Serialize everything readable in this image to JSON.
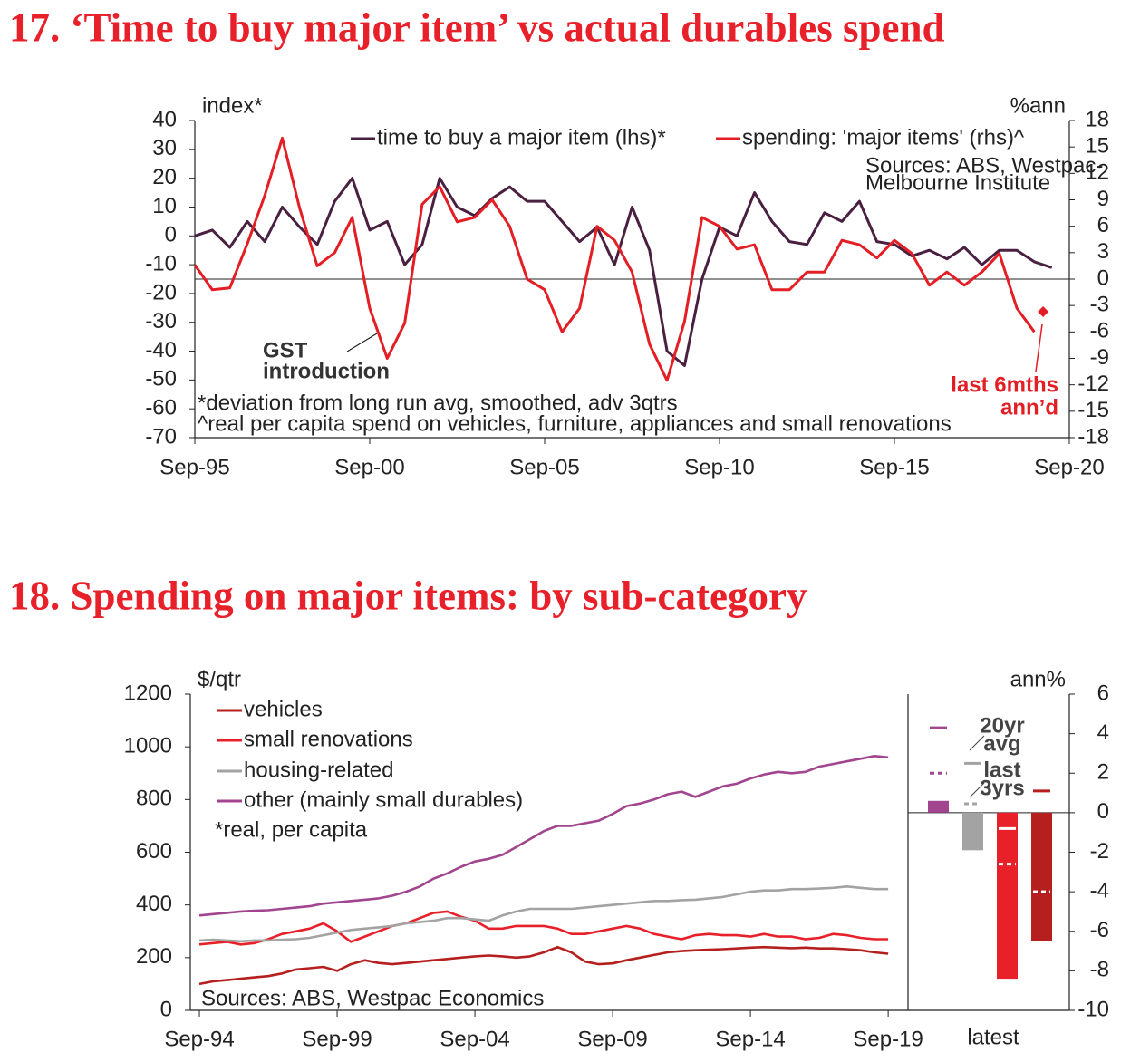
{
  "chart_data": [
    {
      "type": "line",
      "title": "17. ‘Time to buy major item’ vs actual durables spend",
      "ylabel": "index*",
      "y2label": "%ann",
      "xlim": [
        1995.75,
        2020.75
      ],
      "xticks": [
        {
          "value": 1995.75,
          "label": "Sep-95"
        },
        {
          "value": 2000.75,
          "label": "Sep-00"
        },
        {
          "value": 2005.75,
          "label": "Sep-05"
        },
        {
          "value": 2010.75,
          "label": "Sep-10"
        },
        {
          "value": 2015.75,
          "label": "Sep-15"
        },
        {
          "value": 2020.75,
          "label": "Sep-20"
        }
      ],
      "ylim": [
        -70,
        40
      ],
      "yticks": [
        40,
        30,
        20,
        10,
        0,
        -10,
        -20,
        -30,
        -40,
        -50,
        -60,
        -70
      ],
      "y2lim": [
        -18,
        18
      ],
      "y2ticks": [
        18,
        15,
        12,
        9,
        6,
        3,
        0,
        -3,
        -6,
        -9,
        -12,
        -15,
        -18
      ],
      "zero_line": "y2",
      "legend": "top",
      "x": [
        1995.75,
        1996.25,
        1996.75,
        1997.25,
        1997.75,
        1998.25,
        1998.75,
        1999.25,
        1999.75,
        2000.25,
        2000.75,
        2001.25,
        2001.75,
        2002.25,
        2002.75,
        2003.25,
        2003.75,
        2004.25,
        2004.75,
        2005.25,
        2005.75,
        2006.25,
        2006.75,
        2007.25,
        2007.75,
        2008.25,
        2008.75,
        2009.25,
        2009.75,
        2010.25,
        2010.75,
        2011.25,
        2011.75,
        2012.25,
        2012.75,
        2013.25,
        2013.75,
        2014.25,
        2014.75,
        2015.25,
        2015.75,
        2016.25,
        2016.75,
        2017.25,
        2017.75,
        2018.25,
        2018.75,
        2019.25,
        2019.75,
        2020.25
      ],
      "series": [
        {
          "name": "time to buy a major item (lhs)*",
          "color": "#4a2040",
          "axis": "y",
          "values": [
            0,
            2,
            -4,
            5,
            -2,
            10,
            3,
            -3,
            12,
            20,
            2,
            5,
            -10,
            -3,
            20,
            10,
            7,
            13,
            17,
            12,
            12,
            5,
            -2,
            3,
            -10,
            10,
            -5,
            -40,
            -45,
            -15,
            3,
            0,
            15,
            5,
            -2,
            -3,
            8,
            5,
            12,
            -2,
            -3,
            -7,
            -5,
            -8,
            -4,
            -10,
            -5,
            -5,
            -9,
            -11
          ]
        },
        {
          "name": "spending: 'major items' (rhs)^",
          "color": "#e31e24",
          "axis": "y2",
          "values": [
            1.6,
            -1.2,
            -1,
            4,
            9.5,
            16,
            8,
            1.5,
            3,
            7,
            -3.3,
            -9,
            -5,
            8.5,
            10.5,
            6.5,
            7,
            9,
            6,
            0,
            -1.2,
            -6,
            -3.3,
            6,
            4.4,
            0.8,
            -7.4,
            -11.5,
            -4.8,
            7,
            6,
            3.4,
            3.9,
            -1.2,
            -1.2,
            0.8,
            0.8,
            4.4,
            3.9,
            2.4,
            4.4,
            2.9,
            -0.7,
            0.8,
            -0.7,
            0.8,
            2.9,
            -3.3,
            -6,
            null
          ]
        }
      ],
      "point": {
        "x": 2020.0,
        "value": -3.7,
        "axis": "y2",
        "color": "#e31e24",
        "label": [
          "last 6mths",
          "ann’d"
        ]
      },
      "sources": [
        "Sources: ABS, Westpac-",
        "Melbourne Institute"
      ],
      "gst_note": [
        "GST",
        "introduction"
      ],
      "notes": [
        "*deviation from long run avg, smoothed, adv 3qtrs",
        "^real per capita spend on vehicles, furniture, appliances and small renovations"
      ]
    },
    {
      "type": "line",
      "title": "18. Spending on major items: by sub-category",
      "ylabel": "$/qtr",
      "y2label": "ann%",
      "xlim": [
        1994.42,
        2020.47
      ],
      "xticks": [
        {
          "value": 1994.75,
          "label": "Sep-94"
        },
        {
          "value": 1999.75,
          "label": "Sep-99"
        },
        {
          "value": 2004.75,
          "label": "Sep-04"
        },
        {
          "value": 2009.75,
          "label": "Sep-09"
        },
        {
          "value": 2014.75,
          "label": "Sep-14"
        },
        {
          "value": 2019.75,
          "label": "Sep-19"
        }
      ],
      "ylim": [
        0,
        1200
      ],
      "yticks": [
        1200,
        1000,
        800,
        600,
        400,
        200,
        0
      ],
      "y2lim": [
        -10,
        6
      ],
      "y2ticks": [
        6,
        4,
        2,
        0,
        -2,
        -4,
        -6,
        -8,
        -10
      ],
      "zero_line": "y2",
      "legend": "upper left",
      "x": [
        1994.75,
        1995.25,
        1995.75,
        1996.25,
        1996.75,
        1997.25,
        1997.75,
        1998.25,
        1998.75,
        1999.25,
        1999.75,
        2000.25,
        2000.75,
        2001.25,
        2001.75,
        2002.25,
        2002.75,
        2003.25,
        2003.75,
        2004.25,
        2004.75,
        2005.25,
        2005.75,
        2006.25,
        2006.75,
        2007.25,
        2007.75,
        2008.25,
        2008.75,
        2009.25,
        2009.75,
        2010.25,
        2010.75,
        2011.25,
        2011.75,
        2012.25,
        2012.75,
        2013.25,
        2013.75,
        2014.25,
        2014.75,
        2015.25,
        2015.75,
        2016.25,
        2016.75,
        2017.25,
        2017.75,
        2018.25,
        2018.75,
        2019.25,
        2019.75
      ],
      "series": [
        {
          "name": "vehicles",
          "color": "#b5201f",
          "axis": "y",
          "latest": -6.5,
          "avg_20yr": 1.1,
          "last_3yrs": -4.0,
          "values": [
            100,
            110,
            115,
            120,
            125,
            130,
            140,
            155,
            160,
            165,
            150,
            175,
            190,
            180,
            175,
            180,
            185,
            190,
            195,
            200,
            205,
            208,
            205,
            200,
            205,
            220,
            240,
            220,
            185,
            175,
            178,
            190,
            200,
            210,
            220,
            225,
            228,
            230,
            232,
            235,
            238,
            240,
            238,
            236,
            238,
            235,
            235,
            232,
            228,
            220,
            215
          ]
        },
        {
          "name": "small renovations",
          "color": "#e8202a",
          "axis": "y",
          "latest": -8.4,
          "avg_20yr": -0.8,
          "last_3yrs": -2.6,
          "values": [
            250,
            255,
            260,
            250,
            255,
            270,
            290,
            300,
            310,
            330,
            300,
            260,
            280,
            300,
            320,
            330,
            350,
            370,
            375,
            355,
            340,
            310,
            310,
            320,
            320,
            320,
            310,
            290,
            290,
            300,
            310,
            320,
            310,
            290,
            280,
            270,
            285,
            290,
            285,
            285,
            280,
            290,
            280,
            280,
            270,
            275,
            290,
            285,
            275,
            270,
            270
          ]
        },
        {
          "name": "housing-related",
          "color": "#a3a3a3",
          "axis": "y",
          "latest": -1.9,
          "avg_20yr": 2.5,
          "last_3yrs": 0.45,
          "values": [
            265,
            268,
            265,
            262,
            265,
            265,
            268,
            270,
            275,
            285,
            295,
            305,
            310,
            315,
            320,
            330,
            335,
            340,
            350,
            350,
            345,
            340,
            360,
            375,
            385,
            385,
            385,
            385,
            390,
            395,
            400,
            405,
            410,
            415,
            415,
            418,
            420,
            425,
            430,
            440,
            450,
            455,
            455,
            460,
            460,
            462,
            465,
            470,
            465,
            460,
            460
          ]
        },
        {
          "name": "other (mainly small durables)",
          "color": "#a1468e",
          "axis": "y",
          "latest": 0.6,
          "avg_20yr": 4.3,
          "last_3yrs": 2.0,
          "values": [
            360,
            365,
            370,
            375,
            378,
            380,
            385,
            390,
            395,
            405,
            410,
            415,
            420,
            425,
            435,
            450,
            470,
            500,
            520,
            545,
            565,
            575,
            590,
            620,
            650,
            680,
            700,
            700,
            710,
            720,
            745,
            775,
            785,
            800,
            820,
            830,
            810,
            830,
            850,
            860,
            880,
            895,
            905,
            900,
            905,
            925,
            935,
            945,
            955,
            965,
            960
          ]
        }
      ],
      "panel_label": "latest",
      "avg_label": [
        "20yr",
        "avg"
      ],
      "last3_label": [
        "last",
        "3yrs"
      ],
      "notes": [
        "*real, per capita"
      ],
      "sources": [
        "Sources: ABS, Westpac Economics"
      ]
    }
  ]
}
